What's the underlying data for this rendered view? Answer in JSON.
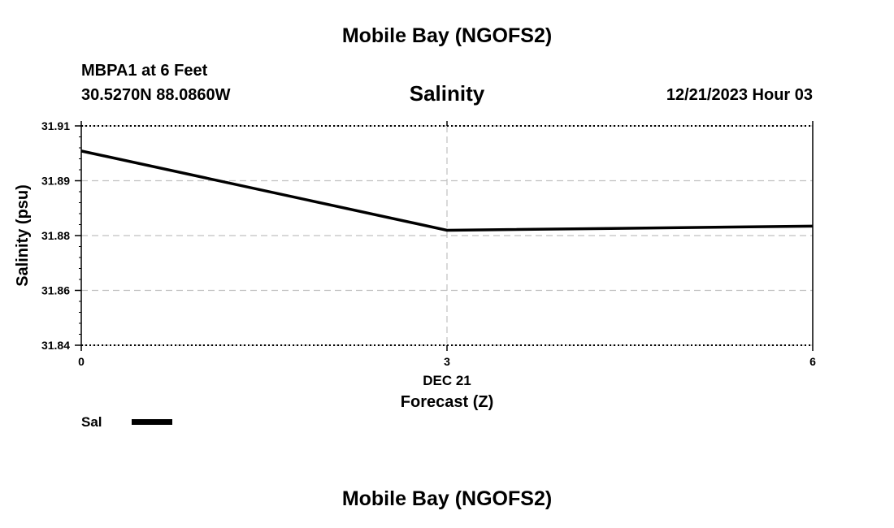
{
  "header": {
    "title": "Mobile Bay (NGOFS2)",
    "station": "MBPA1 at 6 Feet",
    "coordinates": "30.5270N  88.0860W",
    "chart_title": "Salinity",
    "datetime": "12/21/2023 Hour 03"
  },
  "footer": {
    "title": "Mobile Bay (NGOFS2)"
  },
  "legend": {
    "label": "Sal"
  },
  "chart_data": {
    "type": "line",
    "title": "Salinity",
    "xlabel": "Forecast (Z)",
    "ylabel": "Salinity (psu)",
    "x_ticks": [
      "0",
      "3",
      "6"
    ],
    "x_tick_values": [
      0,
      3,
      6
    ],
    "x_date_label": "DEC 21",
    "y_ticks": [
      "31.84",
      "31.86",
      "31.88",
      "31.89",
      "31.91"
    ],
    "y_tick_values": [
      31.84,
      31.86,
      31.88,
      31.89,
      31.91
    ],
    "xlim": [
      0,
      6
    ],
    "ylim": [
      31.84,
      31.91
    ],
    "grid": true,
    "series": [
      {
        "name": "Sal",
        "x": [
          0,
          3,
          6
        ],
        "y": [
          31.902,
          31.8767,
          31.878
        ]
      }
    ],
    "colors": {
      "line": "#000000",
      "grid": "#c0c0c0"
    }
  }
}
